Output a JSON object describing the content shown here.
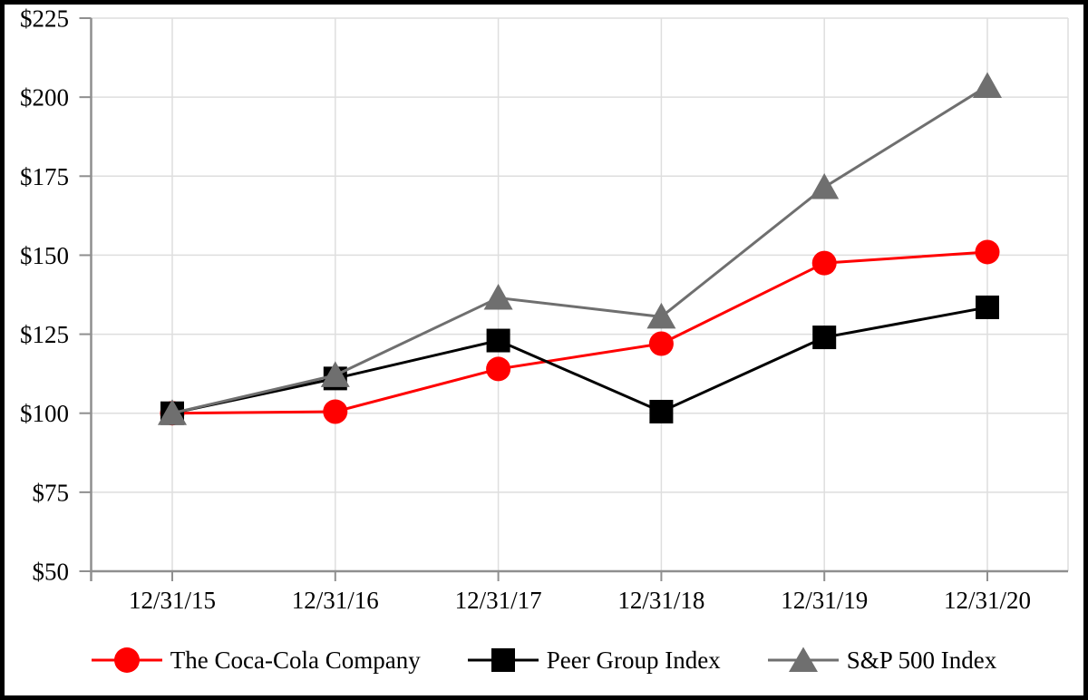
{
  "chart_data": {
    "type": "line",
    "title": "",
    "xlabel": "",
    "ylabel": "",
    "ylim": [
      50,
      225
    ],
    "grid": true,
    "legend_position": "bottom",
    "x_axis": {
      "categories": [
        "12/31/15",
        "12/31/16",
        "12/31/17",
        "12/31/18",
        "12/31/19",
        "12/31/20"
      ]
    },
    "y_axis": {
      "tick_prefix": "$",
      "ticks": [
        {
          "label": "$50",
          "value": 50
        },
        {
          "label": "$75",
          "value": 75
        },
        {
          "label": "$100",
          "value": 100
        },
        {
          "label": "$125",
          "value": 125
        },
        {
          "label": "$150",
          "value": 150
        },
        {
          "label": "$175",
          "value": 175
        },
        {
          "label": "$200",
          "value": 200
        },
        {
          "label": "$225",
          "value": 225
        }
      ]
    },
    "series": [
      {
        "name": "The Coca-Cola Company",
        "marker": "circle",
        "color": "#FF0000",
        "values": [
          100,
          100.5,
          114,
          122,
          147.5,
          151
        ]
      },
      {
        "name": "Peer Group Index",
        "marker": "square",
        "color": "#000000",
        "values": [
          100,
          111,
          123,
          100.5,
          124,
          133.5
        ]
      },
      {
        "name": "S&P 500 Index",
        "marker": "triangle",
        "color": "#6F6F6F",
        "values": [
          100,
          112,
          136.5,
          130.5,
          171.5,
          203.5
        ]
      }
    ]
  },
  "colors": {
    "gridline": "#DEDEDE",
    "axis": "#8F8F8F",
    "text": "#000000",
    "frame_border": "#000000",
    "coca_cola_red": "#FF0000",
    "peer_group_black": "#000000",
    "sp500_gray": "#6F6F6F"
  }
}
